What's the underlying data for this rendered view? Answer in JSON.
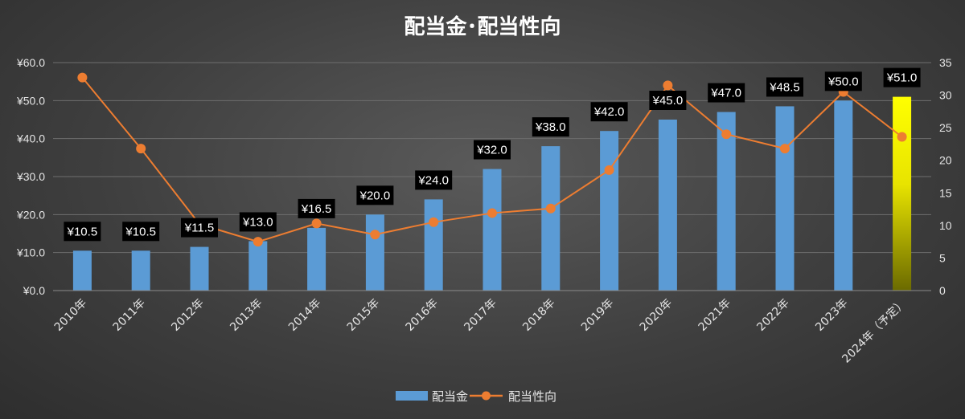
{
  "chart_data": {
    "type": "bar",
    "title": "配当金･配当性向",
    "categories": [
      "2010年",
      "2011年",
      "2012年",
      "2013年",
      "2014年",
      "2015年",
      "2016年",
      "2017年",
      "2018年",
      "2019年",
      "2020年",
      "2021年",
      "2022年",
      "2023年",
      "2024年（予定）"
    ],
    "series": [
      {
        "name": "配当金",
        "type": "bar",
        "axis": "left",
        "color": "#5b9bd5",
        "highlight_color": "#ffff00",
        "highlight_index": 14,
        "values": [
          10.5,
          10.5,
          11.5,
          13.0,
          16.5,
          20.0,
          24.0,
          32.0,
          38.0,
          42.0,
          45.0,
          47.0,
          48.5,
          50.0,
          51.0
        ],
        "labels": [
          "¥10.5",
          "¥10.5",
          "¥11.5",
          "¥13.0",
          "¥16.5",
          "¥20.0",
          "¥24.0",
          "¥32.0",
          "¥38.0",
          "¥42.0",
          "¥45.0",
          "¥47.0",
          "¥48.5",
          "¥50.0",
          "¥51.0"
        ]
      },
      {
        "name": "配当性向",
        "type": "line",
        "axis": "right",
        "color": "#ed7d31",
        "values": [
          32.7,
          21.8,
          10.2,
          7.5,
          10.3,
          8.6,
          10.5,
          11.9,
          12.6,
          18.5,
          31.5,
          24.0,
          21.8,
          30.5,
          23.6
        ]
      }
    ],
    "y_left": {
      "ylim": [
        0,
        60
      ],
      "ticks": [
        "¥0.0",
        "¥10.0",
        "¥20.0",
        "¥30.0",
        "¥40.0",
        "¥50.0",
        "¥60.0"
      ],
      "tick_values": [
        0,
        10,
        20,
        30,
        40,
        50,
        60
      ]
    },
    "y_right": {
      "ylim": [
        0,
        35
      ],
      "ticks": [
        "0",
        "5",
        "10",
        "15",
        "20",
        "25",
        "30",
        "35"
      ],
      "tick_values": [
        0,
        5,
        10,
        15,
        20,
        25,
        30,
        35
      ]
    },
    "grid": true,
    "legend": "bottom"
  }
}
